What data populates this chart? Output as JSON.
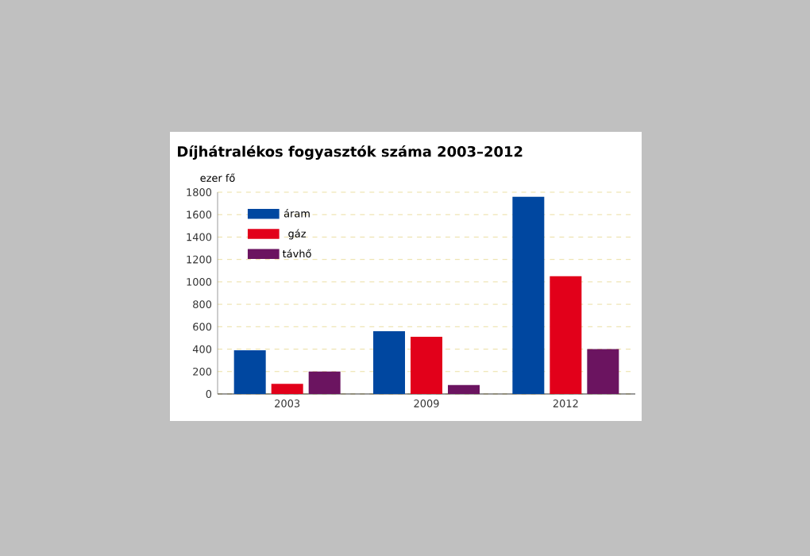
{
  "chart_data": {
    "type": "bar",
    "title": "Díjhátralékos fogyasztók száma 2003–2012",
    "ylabel": "ezer fő",
    "categories": [
      "2003",
      "2009",
      "2012"
    ],
    "series": [
      {
        "name": "áram",
        "color": "#0047a0",
        "values": [
          390,
          560,
          1760
        ]
      },
      {
        "name": "gáz",
        "color": "#e2001a",
        "values": [
          90,
          510,
          1050
        ]
      },
      {
        "name": "távhő",
        "color": "#6b1460",
        "values": [
          200,
          80,
          400
        ]
      }
    ],
    "ylim": [
      0,
      1800
    ],
    "yticks": [
      0,
      200,
      400,
      600,
      800,
      1000,
      1200,
      1400,
      1600,
      1800
    ],
    "grid": "y",
    "legend": "top left"
  }
}
